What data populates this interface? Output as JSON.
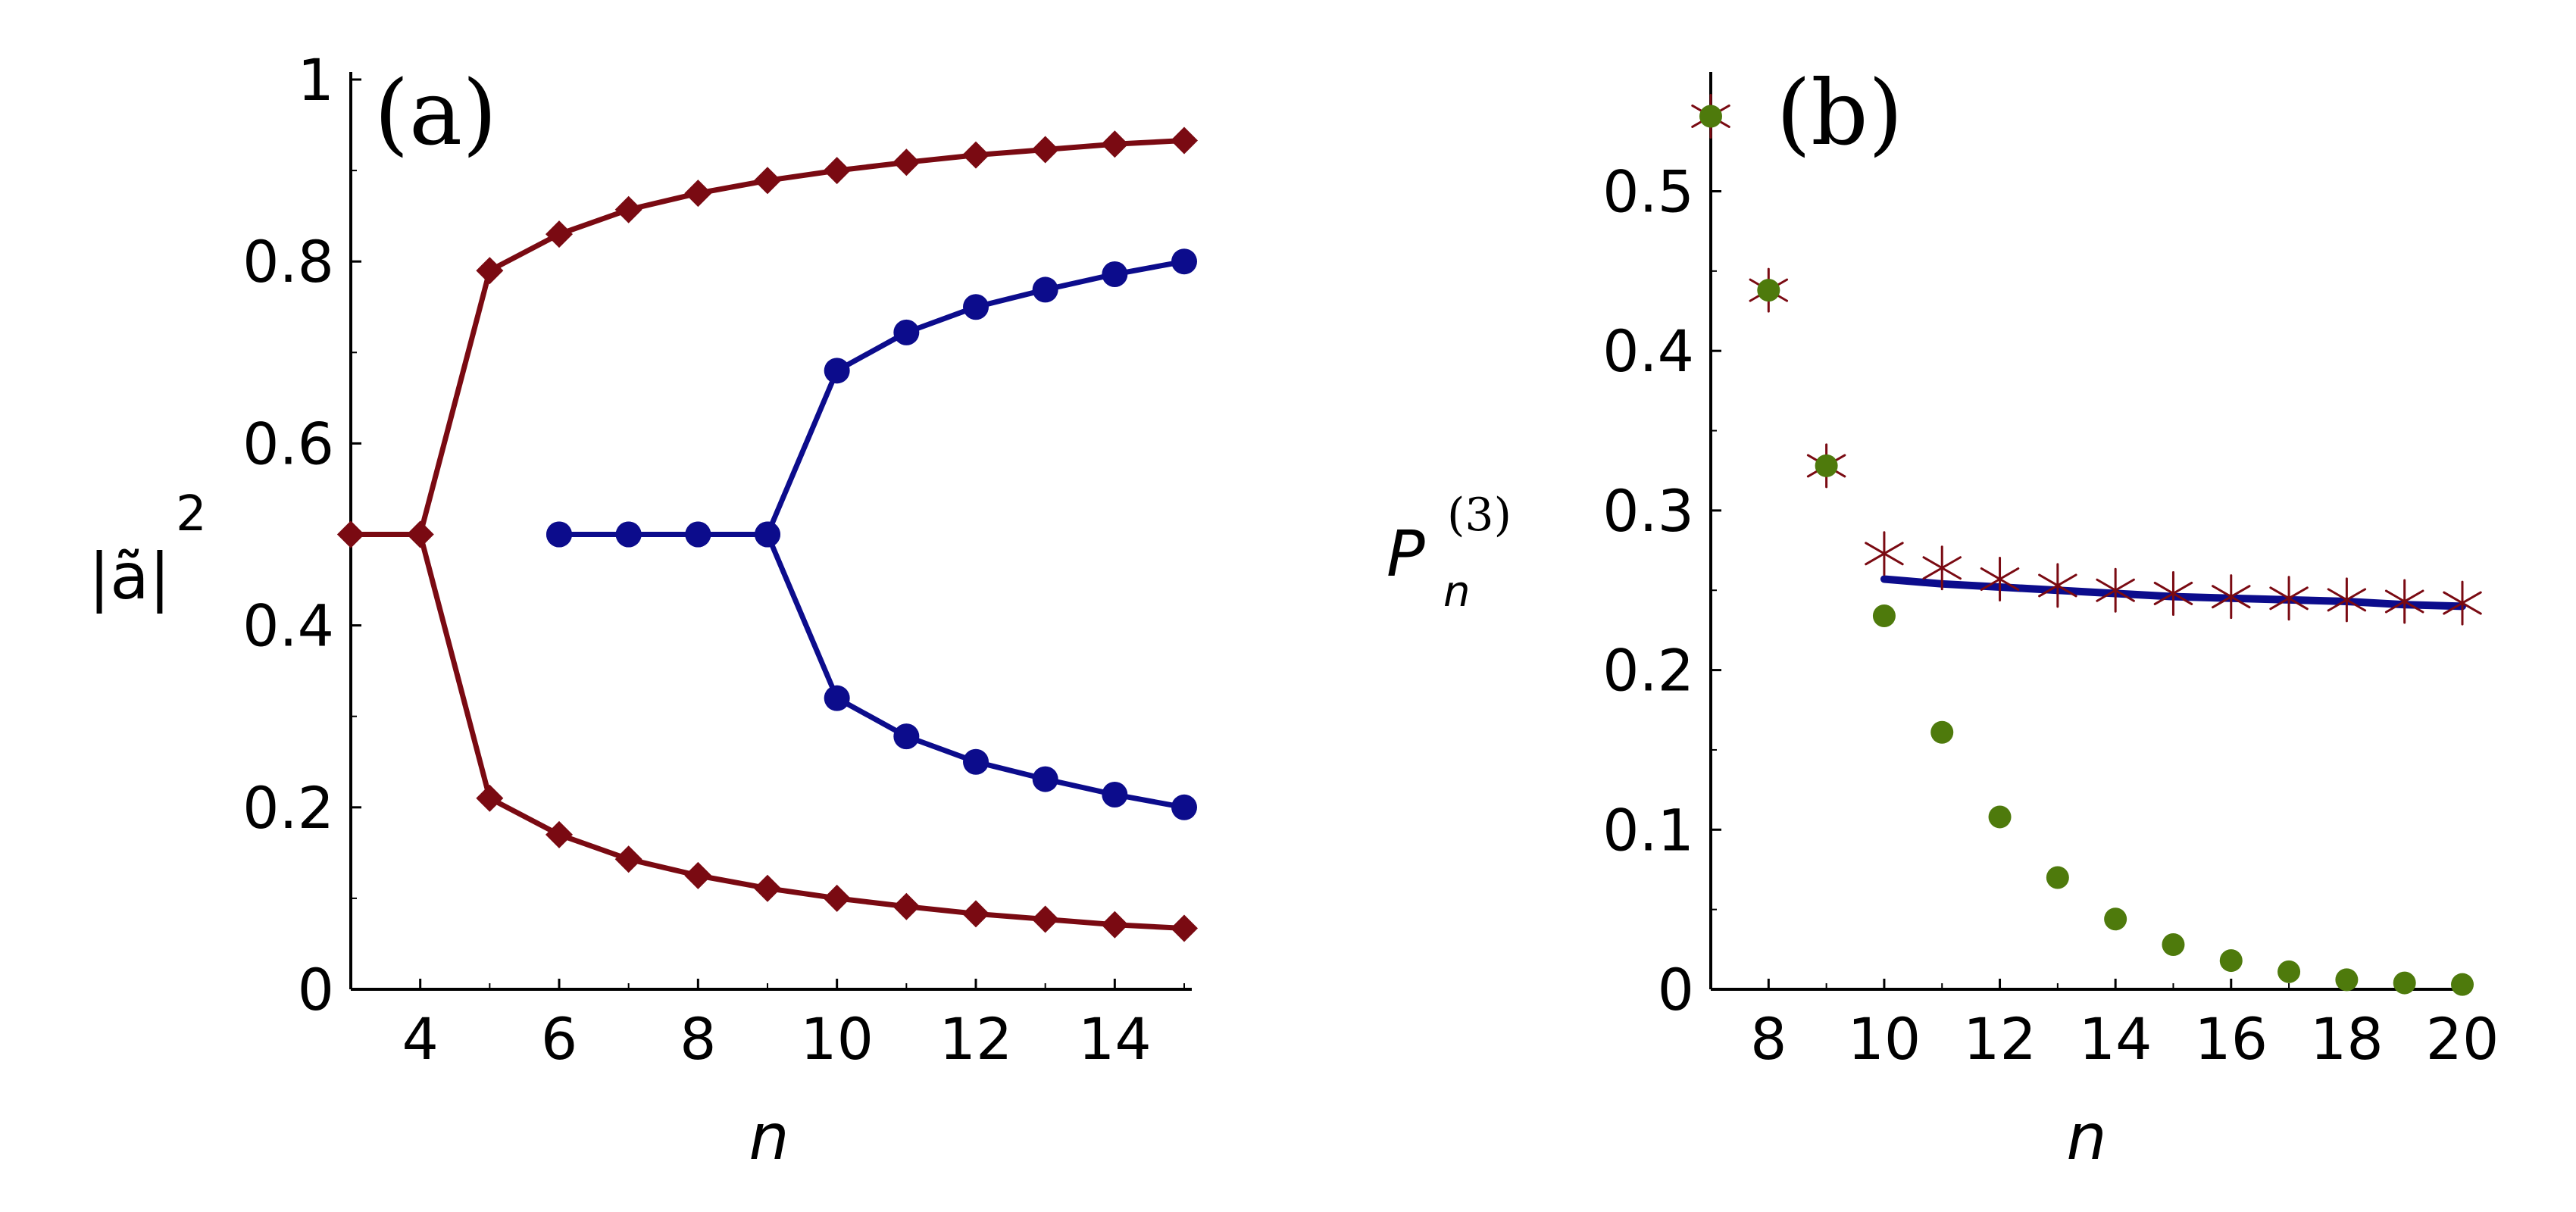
{
  "colors": {
    "dark_red": "#7a0a12",
    "blue": "#0c0c8c",
    "green": "#4e7a0c",
    "axis": "#000000"
  },
  "chart_data": [
    {
      "panel": "(a)",
      "type": "line",
      "xlabel": "n",
      "ylabel": "|ã|²",
      "ylabel_base": "|ã|",
      "ylabel_exp": "2",
      "xlim": [
        3,
        15
      ],
      "ylim": [
        0,
        1
      ],
      "xticks": [
        4,
        6,
        8,
        10,
        12,
        14
      ],
      "yticks": [
        0,
        0.2,
        0.4,
        0.6,
        0.8,
        1
      ],
      "ytick_labels": [
        "0",
        "0.2",
        "0.4",
        "0.6",
        "0.8",
        "1"
      ],
      "grid": false,
      "series": [
        {
          "color": "dark_red",
          "marker": "diamond",
          "x": [
            3,
            4,
            5,
            6,
            7,
            8,
            9,
            10,
            11,
            12,
            13,
            14,
            15
          ],
          "y": [
            0.5,
            0.5,
            0.79,
            0.83,
            0.857,
            0.875,
            0.889,
            0.9,
            0.909,
            0.917,
            0.923,
            0.929,
            0.933
          ]
        },
        {
          "color": "dark_red",
          "marker": "diamond",
          "x": [
            3,
            4,
            5,
            6,
            7,
            8,
            9,
            10,
            11,
            12,
            13,
            14,
            15
          ],
          "y": [
            0.5,
            0.5,
            0.21,
            0.17,
            0.143,
            0.125,
            0.111,
            0.1,
            0.091,
            0.083,
            0.077,
            0.071,
            0.067
          ]
        },
        {
          "color": "blue",
          "marker": "circle",
          "x": [
            6,
            7,
            8,
            9,
            10,
            11,
            12,
            13,
            14,
            15
          ],
          "y": [
            0.5,
            0.5,
            0.5,
            0.5,
            0.68,
            0.722,
            0.75,
            0.769,
            0.786,
            0.8
          ]
        },
        {
          "color": "blue",
          "marker": "circle",
          "x": [
            6,
            7,
            8,
            9,
            10,
            11,
            12,
            13,
            14,
            15
          ],
          "y": [
            0.5,
            0.5,
            0.5,
            0.5,
            0.32,
            0.278,
            0.25,
            0.231,
            0.214,
            0.2
          ]
        }
      ]
    },
    {
      "panel": "(b)",
      "type": "scatter",
      "xlabel": "n",
      "ylabel": "P n (3)",
      "ylabel_base": "P",
      "ylabel_sub": "n",
      "ylabel_sup": "(3)",
      "xlim": [
        7,
        20
      ],
      "ylim": [
        0,
        0.57
      ],
      "xticks": [
        8,
        10,
        12,
        14,
        16,
        18,
        20
      ],
      "yticks": [
        0,
        0.1,
        0.2,
        0.3,
        0.4,
        0.5
      ],
      "ytick_labels": [
        "0",
        "0.1",
        "0.2",
        "0.3",
        "0.4",
        "0.5"
      ],
      "grid": false,
      "series": [
        {
          "color": "dark_red",
          "marker": "asterisk",
          "x": [
            7,
            8,
            9,
            10,
            11,
            12,
            13,
            14,
            15,
            16,
            17,
            18,
            19,
            20
          ],
          "y": [
            0.547,
            0.438,
            0.328,
            0.273,
            0.264,
            0.257,
            0.253,
            0.25,
            0.248,
            0.246,
            0.245,
            0.244,
            0.243,
            0.242
          ]
        },
        {
          "color": "green",
          "marker": "circle",
          "x": [
            7,
            8,
            9,
            10,
            11,
            12,
            13,
            14,
            15,
            16,
            17,
            18,
            19,
            20
          ],
          "y": [
            0.547,
            0.438,
            0.328,
            0.234,
            0.161,
            0.108,
            0.07,
            0.044,
            0.028,
            0.018,
            0.011,
            0.006,
            0.004,
            0.003
          ]
        },
        {
          "color": "blue",
          "marker": "none",
          "style": "line",
          "x": [
            10,
            11,
            12,
            13,
            14,
            15,
            16,
            17,
            18,
            19,
            20
          ],
          "y": [
            0.257,
            0.254,
            0.252,
            0.25,
            0.248,
            0.246,
            0.245,
            0.244,
            0.243,
            0.241,
            0.24
          ]
        }
      ]
    }
  ]
}
